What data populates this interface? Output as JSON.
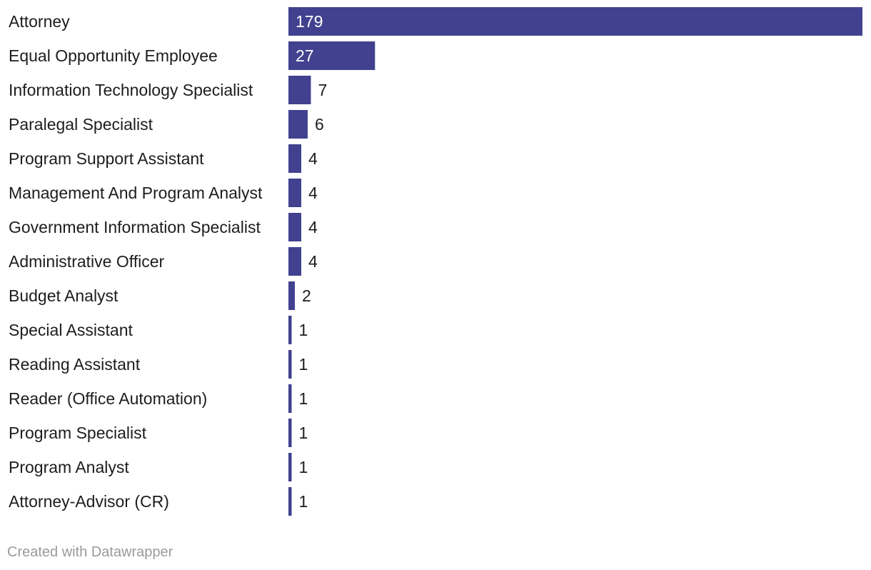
{
  "chart_data": {
    "type": "bar",
    "orientation": "horizontal",
    "categories": [
      "Attorney",
      "Equal Opportunity Employee",
      "Information Technology Specialist",
      "Paralegal Specialist",
      "Program Support Assistant",
      "Management And Program Analyst",
      "Government Information Specialist",
      "Administrative Officer",
      "Budget Analyst",
      "Special Assistant",
      "Reading Assistant",
      "Reader (Office Automation)",
      "Program Specialist",
      "Program Analyst",
      "Attorney-Advisor (CR)"
    ],
    "values": [
      179,
      27,
      7,
      6,
      4,
      4,
      4,
      4,
      2,
      1,
      1,
      1,
      1,
      1,
      1
    ],
    "xlim": [
      0,
      179
    ],
    "grid": false,
    "bar_color": "#414190",
    "label_inside_color": "#ffffff",
    "label_outside_color": "#1d1d1d"
  },
  "footer": {
    "credit": "Created with Datawrapper"
  }
}
